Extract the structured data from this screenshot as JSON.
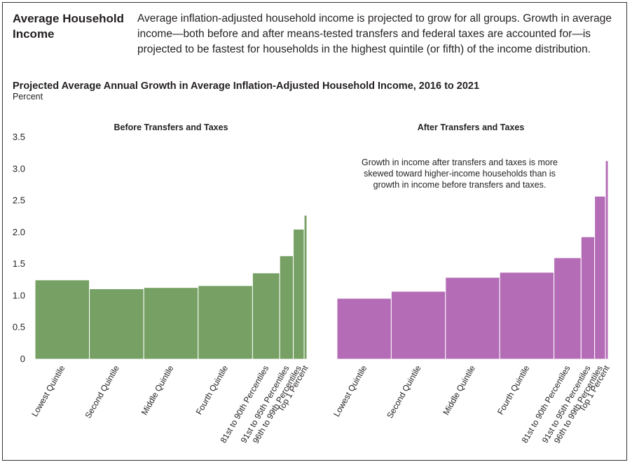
{
  "header": {
    "title": "Average Household Income",
    "description": "Average inflation-adjusted household income is projected to grow for all groups. Growth in average income—both before and after means-tested transfers and federal taxes are accounted for—is projected to be fastest for households in the highest quintile (or fifth) of the income distribution."
  },
  "chart": {
    "title": "Projected Average Annual Growth in Average Inflation-Adjusted Household Income, 2016 to 2021",
    "unit": "Percent",
    "note": "Growth in income after transfers and taxes is more skewed toward higher-income households than is growth in income before transfers and taxes."
  },
  "chart_data": [
    {
      "type": "bar",
      "title": "Before Transfers and Taxes",
      "ylabel": "Percent",
      "ylim": [
        0,
        3.5
      ],
      "yticks": [
        "0",
        "0.5",
        "1.0",
        "1.5",
        "2.0",
        "2.5",
        "3.0",
        "3.5"
      ],
      "color": "#76a064",
      "categories": [
        "Lowest Quintile",
        "Second Quintile",
        "Middle Quintile",
        "Fourth Quintile",
        "81st to 90th Percentiles",
        "91st to 95th Percentiles",
        "96th to 99th Percentiles",
        "Top 1 Percent"
      ],
      "population_share": [
        20,
        20,
        20,
        20,
        10,
        5,
        4,
        1
      ],
      "values": [
        1.25,
        1.11,
        1.13,
        1.16,
        1.36,
        1.63,
        2.05,
        2.27
      ]
    },
    {
      "type": "bar",
      "title": "After Transfers and Taxes",
      "ylabel": "Percent",
      "ylim": [
        0,
        3.5
      ],
      "color": "#b46cb6",
      "categories": [
        "Lowest Quintile",
        "Second Quintile",
        "Middle Quintile",
        "Fourth Quintile",
        "81st to 90th Percentiles",
        "91st to 95th Percentiles",
        "96th to 99th Percentiles",
        "Top 1 Percent"
      ],
      "population_share": [
        20,
        20,
        20,
        20,
        10,
        5,
        4,
        1
      ],
      "values": [
        0.96,
        1.07,
        1.29,
        1.37,
        1.6,
        1.93,
        2.57,
        3.13
      ]
    }
  ]
}
